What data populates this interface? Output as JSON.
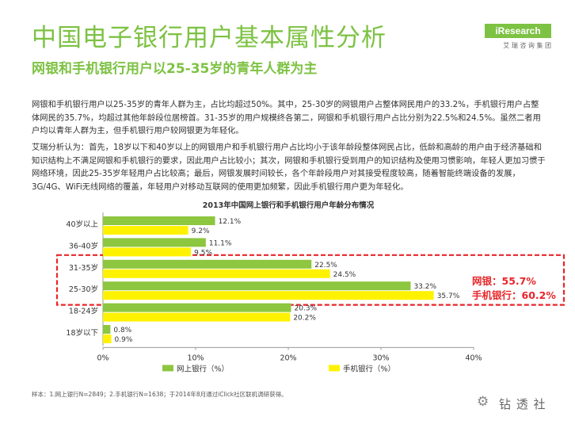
{
  "header": {
    "title": "中国电子银行用户基本属性分析",
    "subtitle": "网银和手机银行用户以25-35岁的青年人群为主",
    "logo_text": "iResearch",
    "logo_cn": "艾 瑞 咨 询 集 团"
  },
  "body": {
    "para1": "网银和手机银行用户以25-35岁的青年人群为主，占比均超过50%。其中，25-30岁的网银用户占整体网民用户的33.2%，手机银行用户占整体网民的35.7%，均超过其他年龄段位居榜首。31-35岁的用户规模终各第二，网银和手机银行用户占比分别为22.5%和24.5%。虽然二者用户均以青年人群为主，但手机银行用户较网银更为年轻化。",
    "para2": "艾瑞分析认为：首先，18岁以下和40岁以上的网银用户和手机银行用户占比均小于该年龄段整体网民占比，低龄和高龄的用户由于经济基础和知识结构上不满足网银和手机银行的要求，因此用户占比较小；其次，网银和手机银行受到用户的知识结构及使用习惯影响，年轻人更加习惯于网络环境，因此25-35岁年轻用户占比较高；最后，网银发展时间较长，各个年龄段用户对其接受程度较高，随着智能终端设备的发展，3G/4G、WiFi无线网络的覆盖，年轻用户对移动互联网的使用更加频繁，因此手机银行用户更为年轻化。"
  },
  "callout": {
    "line1": "网银：55.7%",
    "line2": "手机银行：60.2%"
  },
  "note": "样本：1.网上银行N=2849；2.手机银行N=1638；于2014年8月通过iClick社区联机调研获得。",
  "watermark": "钻 透 社",
  "colors": {
    "accent": "#7dc243",
    "series1": "#8dc63f",
    "series2": "#fff200",
    "highlight": "#e8262a"
  },
  "chart_data": {
    "type": "bar",
    "orientation": "horizontal",
    "title": "2013年中国网上银行和手机银行用户年龄分布情况",
    "categories": [
      "40岁以上",
      "36-40岁",
      "31-35岁",
      "25-30岁",
      "18-24岁",
      "18岁以下"
    ],
    "series": [
      {
        "name": "网上银行（%）",
        "values": [
          12.1,
          11.1,
          22.5,
          33.2,
          20.3,
          0.8
        ],
        "labels": [
          "12.1%",
          "11.1%",
          "22.5%",
          "33.2%",
          "20.3%",
          "0.8%"
        ]
      },
      {
        "name": "手机银行（%）",
        "values": [
          9.2,
          9.5,
          24.5,
          35.7,
          20.2,
          0.9
        ],
        "labels": [
          "9.2%",
          "9.5%",
          "24.5%",
          "35.7%",
          "20.2%",
          "0.9%"
        ]
      }
    ],
    "xlim": [
      0,
      40
    ],
    "xticks": [
      "0%",
      "10%",
      "20%",
      "30%",
      "40%"
    ],
    "grid": false,
    "legend": "bottom"
  }
}
